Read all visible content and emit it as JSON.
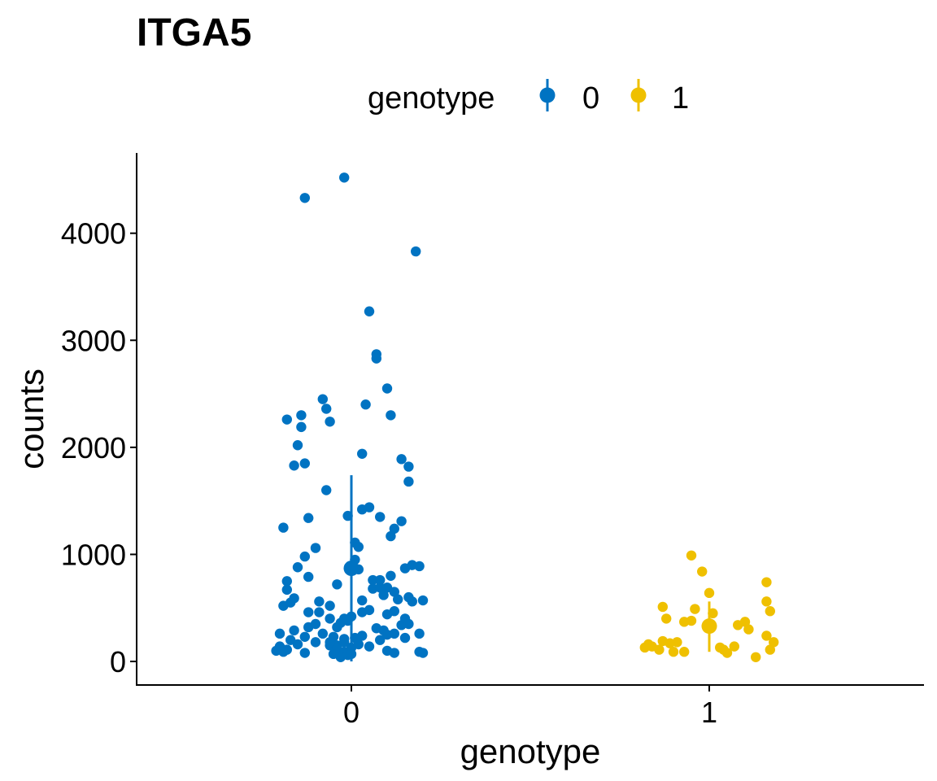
{
  "chart_data": {
    "type": "scatter",
    "title": "ITGA5",
    "xlabel": "genotype",
    "ylabel": "counts",
    "categories": [
      "0",
      "1"
    ],
    "xlim": [
      -0.6,
      1.6
    ],
    "ylim": [
      -220,
      4750
    ],
    "yticks": [
      0,
      1000,
      2000,
      3000,
      4000
    ],
    "yticklabels": [
      "0",
      "1000",
      "2000",
      "3000",
      "4000"
    ],
    "legend": {
      "title": "genotype",
      "position": "top",
      "entries": [
        "0",
        "1"
      ]
    },
    "series": [
      {
        "name": "0",
        "color": "#0073C2",
        "summary": {
          "x": 0,
          "mean": 870,
          "low": 0,
          "high": 1740
        },
        "points": [
          [
            -0.02,
            4520
          ],
          [
            -0.13,
            4330
          ],
          [
            0.18,
            3830
          ],
          [
            0.05,
            3270
          ],
          [
            0.07,
            2870
          ],
          [
            0.07,
            2830
          ],
          [
            0.1,
            2550
          ],
          [
            -0.08,
            2450
          ],
          [
            0.04,
            2400
          ],
          [
            -0.07,
            2360
          ],
          [
            -0.18,
            2260
          ],
          [
            -0.14,
            2300
          ],
          [
            0.11,
            2300
          ],
          [
            -0.06,
            2240
          ],
          [
            -0.14,
            2190
          ],
          [
            -0.15,
            2020
          ],
          [
            0.03,
            1940
          ],
          [
            0.14,
            1890
          ],
          [
            -0.13,
            1850
          ],
          [
            -0.16,
            1830
          ],
          [
            0.16,
            1820
          ],
          [
            0.16,
            1680
          ],
          [
            -0.07,
            1600
          ],
          [
            -0.19,
            1250
          ],
          [
            -0.12,
            1340
          ],
          [
            0.03,
            1420
          ],
          [
            0.05,
            1440
          ],
          [
            -0.01,
            1360
          ],
          [
            0.08,
            1350
          ],
          [
            0.14,
            1310
          ],
          [
            0.12,
            1240
          ],
          [
            0.11,
            1170
          ],
          [
            -0.1,
            1060
          ],
          [
            0.01,
            1110
          ],
          [
            0.02,
            1070
          ],
          [
            -0.13,
            980
          ],
          [
            -0.15,
            880
          ],
          [
            0.01,
            950
          ],
          [
            0.0,
            890
          ],
          [
            0.02,
            860
          ],
          [
            0.15,
            870
          ],
          [
            0.17,
            900
          ],
          [
            0.19,
            890
          ],
          [
            -0.18,
            750
          ],
          [
            -0.18,
            670
          ],
          [
            -0.12,
            790
          ],
          [
            -0.04,
            720
          ],
          [
            0.06,
            760
          ],
          [
            0.08,
            760
          ],
          [
            0.11,
            800
          ],
          [
            0.1,
            690
          ],
          [
            0.12,
            650
          ],
          [
            0.13,
            580
          ],
          [
            0.16,
            600
          ],
          [
            0.17,
            560
          ],
          [
            0.2,
            570
          ],
          [
            -0.19,
            520
          ],
          [
            -0.17,
            550
          ],
          [
            -0.16,
            590
          ],
          [
            -0.09,
            560
          ],
          [
            -0.06,
            520
          ],
          [
            0.03,
            570
          ],
          [
            0.06,
            680
          ],
          [
            0.08,
            690
          ],
          [
            0.09,
            620
          ],
          [
            -0.12,
            460
          ],
          [
            -0.09,
            460
          ],
          [
            -0.06,
            400
          ],
          [
            -0.02,
            400
          ],
          [
            0.0,
            420
          ],
          [
            0.03,
            460
          ],
          [
            0.05,
            480
          ],
          [
            0.1,
            440
          ],
          [
            0.12,
            470
          ],
          [
            0.15,
            400
          ],
          [
            -0.16,
            290
          ],
          [
            -0.12,
            320
          ],
          [
            -0.1,
            350
          ],
          [
            -0.04,
            320
          ],
          [
            -0.03,
            360
          ],
          [
            -0.01,
            380
          ],
          [
            0.07,
            310
          ],
          [
            0.09,
            290
          ],
          [
            0.12,
            260
          ],
          [
            0.14,
            340
          ],
          [
            0.16,
            350
          ],
          [
            -0.2,
            260
          ],
          [
            -0.17,
            200
          ],
          [
            -0.13,
            230
          ],
          [
            -0.08,
            260
          ],
          [
            -0.05,
            230
          ],
          [
            -0.02,
            180
          ],
          [
            0.01,
            220
          ],
          [
            0.03,
            240
          ],
          [
            0.08,
            200
          ],
          [
            0.1,
            250
          ],
          [
            0.15,
            220
          ],
          [
            0.19,
            260
          ],
          [
            -0.2,
            140
          ],
          [
            -0.18,
            110
          ],
          [
            -0.15,
            160
          ],
          [
            -0.1,
            180
          ],
          [
            -0.06,
            150
          ],
          [
            -0.04,
            120
          ],
          [
            -0.02,
            90
          ],
          [
            0.0,
            130
          ],
          [
            0.02,
            160
          ],
          [
            0.05,
            140
          ],
          [
            0.1,
            100
          ],
          [
            0.12,
            80
          ],
          [
            0.19,
            90
          ],
          [
            0.2,
            80
          ],
          [
            -0.21,
            100
          ],
          [
            -0.19,
            90
          ],
          [
            -0.13,
            80
          ],
          [
            -0.05,
            70
          ],
          [
            -0.03,
            40
          ],
          [
            -0.01,
            60
          ],
          [
            0.0,
            70
          ],
          [
            -0.02,
            210
          ],
          [
            -0.04,
            150
          ],
          [
            -0.06,
            180
          ]
        ]
      },
      {
        "name": "1",
        "color": "#EFC000",
        "summary": {
          "x": 1,
          "mean": 330,
          "low": 90,
          "high": 560
        },
        "points": [
          [
            0.95,
            990
          ],
          [
            0.98,
            840
          ],
          [
            1.0,
            640
          ],
          [
            1.01,
            450
          ],
          [
            0.96,
            490
          ],
          [
            1.16,
            740
          ],
          [
            1.16,
            560
          ],
          [
            1.17,
            470
          ],
          [
            0.87,
            510
          ],
          [
            0.88,
            400
          ],
          [
            0.93,
            370
          ],
          [
            0.95,
            380
          ],
          [
            1.1,
            370
          ],
          [
            1.08,
            340
          ],
          [
            1.11,
            300
          ],
          [
            1.16,
            240
          ],
          [
            0.84,
            140
          ],
          [
            0.87,
            190
          ],
          [
            0.89,
            170
          ],
          [
            0.91,
            180
          ],
          [
            0.83,
            160
          ],
          [
            0.82,
            130
          ],
          [
            0.86,
            110
          ],
          [
            0.9,
            90
          ],
          [
            0.93,
            90
          ],
          [
            1.03,
            130
          ],
          [
            1.04,
            110
          ],
          [
            1.05,
            80
          ],
          [
            1.07,
            140
          ],
          [
            1.13,
            40
          ],
          [
            1.17,
            110
          ],
          [
            1.18,
            180
          ]
        ]
      }
    ]
  }
}
